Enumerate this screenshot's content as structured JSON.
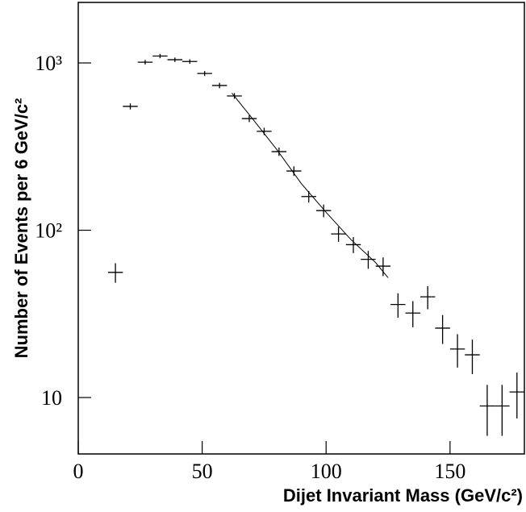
{
  "chart_data": {
    "type": "scatter",
    "x_label": "Dijet Invariant Mass (GeV/c²)",
    "y_label": "Number of Events per 6 GeV/c²",
    "x": [
      15,
      21,
      27,
      33,
      39,
      45,
      51,
      57,
      63,
      69,
      75,
      81,
      87,
      93,
      99,
      105,
      111,
      117,
      123,
      129,
      135,
      141,
      147,
      153,
      159,
      165,
      171,
      177
    ],
    "values": [
      56,
      550,
      1010,
      1100,
      1045,
      1020,
      865,
      733,
      635,
      465,
      390,
      295,
      226,
      159,
      131,
      95,
      82,
      67,
      61,
      36,
      32,
      40,
      26,
      19.5,
      18,
      8.9,
      8.9,
      10.8
    ],
    "errors": [
      7.5,
      23,
      32,
      33,
      32,
      32,
      29,
      27,
      25,
      22,
      20,
      17,
      15,
      12.6,
      11.4,
      9.7,
      9,
      8.2,
      7.8,
      6,
      5.7,
      6.3,
      5.1,
      4.4,
      4.2,
      3,
      3,
      3.3
    ],
    "x_half_width": 3,
    "color": "#000000",
    "fit": {
      "x": [
        62,
        70,
        80,
        90,
        100,
        110,
        120,
        125
      ],
      "y": [
        660,
        470,
        305,
        190,
        128,
        88,
        64,
        52
      ]
    },
    "log_y": true,
    "xlim": [
      0,
      180
    ],
    "ylim": [
      4.6,
      2300
    ],
    "xticks": [
      0,
      50,
      100,
      150
    ],
    "yticks": [
      {
        "value": 10,
        "label": "10"
      },
      {
        "value": 100,
        "label": "10²"
      },
      {
        "value": 1000,
        "label": "10³"
      }
    ]
  }
}
